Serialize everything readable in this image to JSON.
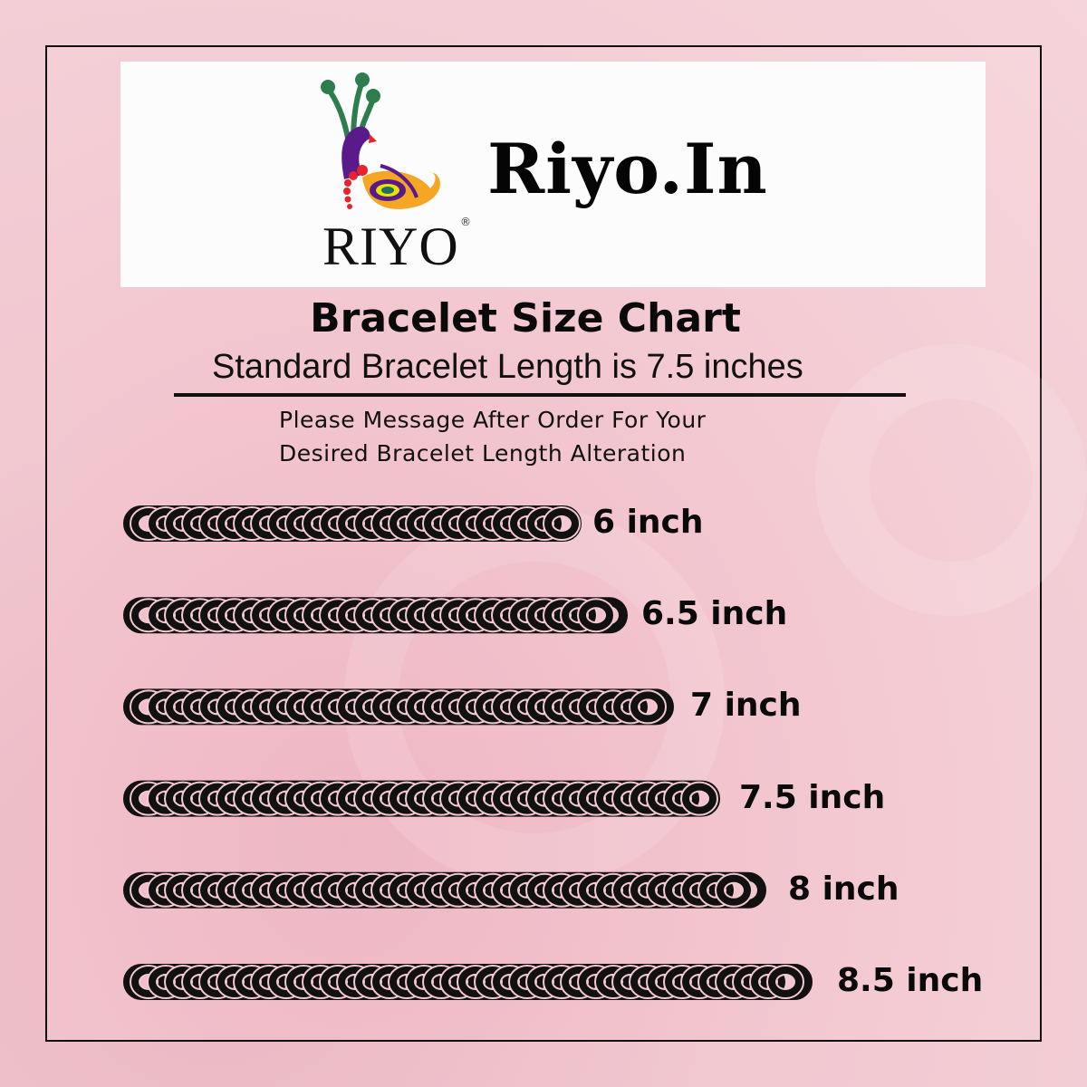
{
  "brand": {
    "site_name": "Riyo.In",
    "logo_text": "RIYO",
    "registered_mark": "®"
  },
  "header": {
    "title": "Bracelet Size Chart",
    "subtitle": "Standard Bracelet Length is 7.5 inches",
    "note_line1": "Please Message After Order For Your",
    "note_line2": "Desired Bracelet Length Alteration"
  },
  "sizes": [
    {
      "label": "6 inch",
      "inches": 6
    },
    {
      "label": "6.5 inch",
      "inches": 6.5
    },
    {
      "label": "7 inch",
      "inches": 7
    },
    {
      "label": "7.5 inch",
      "inches": 7.5
    },
    {
      "label": "8 inch",
      "inches": 8
    },
    {
      "label": "8.5 inch",
      "inches": 8.5
    }
  ],
  "colors": {
    "background": "#f3c8d1",
    "chain": "#111111",
    "peacock_body": "#5a1a8c",
    "peacock_tail": "#f5a623",
    "crest": "#2e7d4f",
    "dots": "#e8232a"
  }
}
